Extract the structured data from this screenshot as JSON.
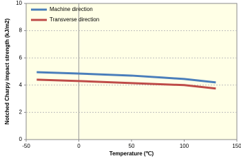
{
  "chart_data": {
    "type": "line",
    "xlabel": "Temperature (℃)",
    "ylabel": "Notched Charpy impact strength  (kJ/m2)",
    "xlim": [
      -50,
      150
    ],
    "xticks": [
      -50,
      0,
      50,
      100,
      150
    ],
    "ylim": [
      0,
      10
    ],
    "yticks": [
      0,
      2,
      4,
      6,
      8,
      10
    ],
    "grid": true,
    "legend": "upper left",
    "series": [
      {
        "name": "Machine direction",
        "color": "#4a7ebb",
        "x": [
          -40,
          0,
          50,
          80,
          100,
          130
        ],
        "values": [
          4.95,
          4.85,
          4.7,
          4.55,
          4.45,
          4.2
        ]
      },
      {
        "name": "Transverse direction",
        "color": "#be4b48",
        "x": [
          -40,
          0,
          50,
          100,
          130
        ],
        "values": [
          4.4,
          4.3,
          4.15,
          4.0,
          3.75
        ]
      }
    ]
  }
}
